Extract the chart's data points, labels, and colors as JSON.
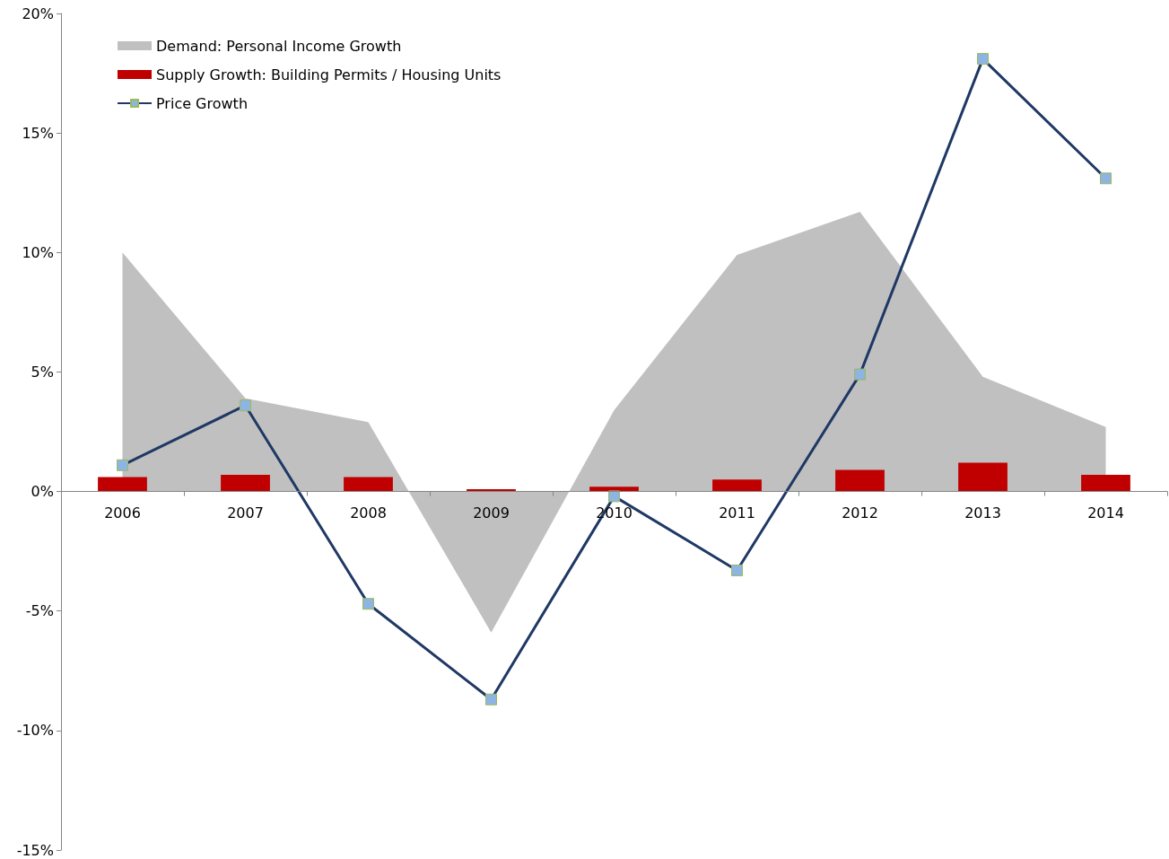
{
  "chart_data": {
    "type": "bar",
    "categories": [
      "2006",
      "2007",
      "2008",
      "2009",
      "2010",
      "2011",
      "2012",
      "2013",
      "2014"
    ],
    "series": [
      {
        "name": "Demand: Personal Income Growth",
        "type": "area",
        "color": "#c0c0c0",
        "values": [
          10.0,
          3.9,
          2.9,
          -5.9,
          3.4,
          9.9,
          11.7,
          4.8,
          2.7
        ]
      },
      {
        "name": "Supply Growth: Building Permits / Housing Units",
        "color": "#c00000",
        "values": [
          0.6,
          0.7,
          0.6,
          0.1,
          0.2,
          0.5,
          0.9,
          1.2,
          0.7
        ]
      },
      {
        "name": "Price Growth",
        "type": "line",
        "color": "#1f3864",
        "marker": "square",
        "values": [
          1.1,
          3.6,
          -4.7,
          -8.7,
          -0.2,
          -3.3,
          4.9,
          18.1,
          13.1
        ]
      }
    ],
    "ylim": [
      -15,
      20
    ],
    "yticks": [
      {
        "value": -15,
        "label": "-15%"
      },
      {
        "value": -10,
        "label": "-10%"
      },
      {
        "value": -5,
        "label": "-5%"
      },
      {
        "value": 0,
        "label": "0%"
      },
      {
        "value": 5,
        "label": "5%"
      },
      {
        "value": 10,
        "label": "10%"
      },
      {
        "value": 15,
        "label": "15%"
      },
      {
        "value": 20,
        "label": "20%"
      }
    ],
    "legend": "top left"
  }
}
